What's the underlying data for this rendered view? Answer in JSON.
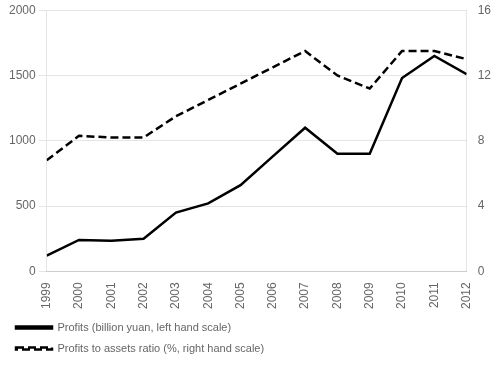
{
  "chart_data": {
    "type": "line",
    "x": [
      1999,
      2000,
      2001,
      2002,
      2003,
      2004,
      2005,
      2006,
      2007,
      2008,
      2009,
      2010,
      2011,
      2012
    ],
    "series": [
      {
        "name": "Profits (billion yuan, left hand scale)",
        "color": "#000000",
        "line_style": "solid",
        "values": [
          120,
          240,
          235,
          250,
          450,
          520,
          660,
          880,
          1100,
          900,
          900,
          1480,
          1650,
          1510
        ]
      },
      {
        "name": "Profits to assets ratio (%, right hand scale)",
        "color": "#000000",
        "line_style": "dashed",
        "axis": "y2",
        "values": [
          6.8,
          8.3,
          8.2,
          8.2,
          9.5,
          10.5,
          11.5,
          12.5,
          13.5,
          12.0,
          11.2,
          13.5,
          13.5,
          13.0
        ]
      }
    ],
    "xlim": [
      1999,
      2012
    ],
    "xticks": [
      1999,
      2000,
      2001,
      2002,
      2003,
      2004,
      2005,
      2006,
      2007,
      2008,
      2009,
      2010,
      2011,
      2012
    ],
    "ylim": [
      0,
      2000
    ],
    "yticks": [
      0,
      500,
      1000,
      1500,
      2000
    ],
    "y2lim": [
      0,
      16
    ],
    "y2ticks": [
      0,
      4,
      8,
      12,
      16
    ],
    "grid": "y",
    "legend": "lower left"
  }
}
